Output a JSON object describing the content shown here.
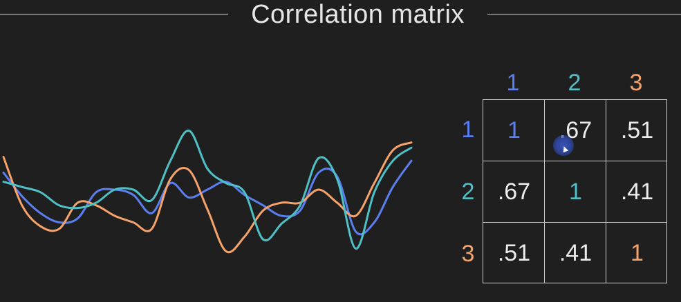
{
  "title": "Correlation matrix",
  "colors": {
    "series1": "#5b7ff0",
    "series2": "#4fc0c6",
    "series3": "#f5a36b",
    "background": "#1f1f1f"
  },
  "matrix": {
    "col_headers": [
      "1",
      "2",
      "3"
    ],
    "row_headers": [
      "1",
      "2",
      "3"
    ],
    "cells": [
      [
        "1",
        ".67",
        ".51"
      ],
      [
        ".67",
        "1",
        ".41"
      ],
      [
        ".51",
        ".41",
        "1"
      ]
    ]
  },
  "series": [
    {
      "id": "1",
      "color": "#5b7ff0",
      "values": [
        0.63,
        0.45,
        0.32,
        0.25,
        0.28,
        0.48,
        0.5,
        0.46,
        0.32,
        0.55,
        0.44,
        0.5,
        0.56,
        0.46,
        0.38,
        0.3,
        0.34,
        0.63,
        0.6,
        0.18,
        0.25,
        0.52,
        0.72
      ]
    },
    {
      "id": "2",
      "color": "#4fc0c6",
      "values": [
        0.56,
        0.52,
        0.48,
        0.38,
        0.36,
        0.4,
        0.5,
        0.5,
        0.42,
        0.72,
        0.95,
        0.66,
        0.55,
        0.48,
        0.12,
        0.24,
        0.38,
        0.74,
        0.58,
        0.05,
        0.48,
        0.72,
        0.82
      ]
    },
    {
      "id": "3",
      "color": "#f5a36b",
      "values": [
        0.75,
        0.38,
        0.22,
        0.2,
        0.4,
        0.38,
        0.3,
        0.25,
        0.2,
        0.58,
        0.65,
        0.35,
        0.03,
        0.14,
        0.34,
        0.4,
        0.4,
        0.5,
        0.4,
        0.3,
        0.55,
        0.8,
        0.86
      ]
    }
  ]
}
